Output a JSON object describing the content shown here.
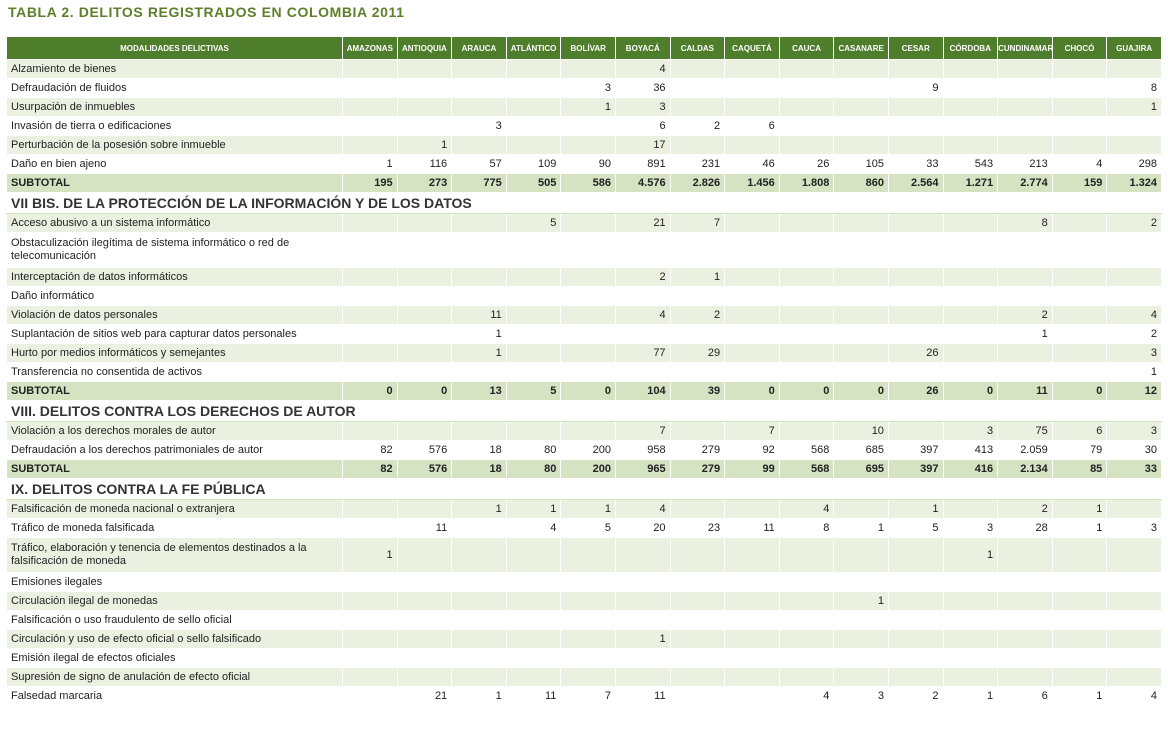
{
  "title": "TABLA 2. DELITOS REGISTRADOS EN COLOMBIA 2011",
  "columns": [
    "MODALIDADES DELICTIVAS",
    "AMAZONAS",
    "ANTIOQUIA",
    "ARAUCA",
    "ATLÁNTICO",
    "BOLÍVAR",
    "BOYACÁ",
    "CALDAS",
    "CAQUETÁ",
    "CAUCA",
    "CASANARE",
    "CESAR",
    "CÓRDOBA",
    "CUNDINAMARCA",
    "CHOCÓ",
    "GUAJIRA"
  ],
  "rows": [
    {
      "type": "data",
      "name": "Alzamiento de bienes",
      "values": [
        "",
        "",
        "",
        "",
        "",
        "4",
        "",
        "",
        "",
        "",
        "",
        "",
        "",
        "",
        ""
      ]
    },
    {
      "type": "data",
      "name": "Defraudación de fluidos",
      "values": [
        "",
        "",
        "",
        "",
        "3",
        "36",
        "",
        "",
        "",
        "",
        "9",
        "",
        "",
        "",
        "8"
      ]
    },
    {
      "type": "data",
      "name": "Usurpación de inmuebles",
      "values": [
        "",
        "",
        "",
        "",
        "1",
        "3",
        "",
        "",
        "",
        "",
        "",
        "",
        "",
        "",
        "1"
      ]
    },
    {
      "type": "data",
      "name": "Invasión de tierra o edificaciones",
      "values": [
        "",
        "",
        "3",
        "",
        "",
        "6",
        "2",
        "6",
        "",
        "",
        "",
        "",
        "",
        "",
        ""
      ]
    },
    {
      "type": "data",
      "name": "Perturbación de la posesión sobre inmueble",
      "values": [
        "",
        "1",
        "",
        "",
        "",
        "17",
        "",
        "",
        "",
        "",
        "",
        "",
        "",
        "",
        ""
      ]
    },
    {
      "type": "data",
      "name": "Daño en bien ajeno",
      "values": [
        "1",
        "116",
        "57",
        "109",
        "90",
        "891",
        "231",
        "46",
        "26",
        "105",
        "33",
        "543",
        "213",
        "4",
        "298"
      ]
    },
    {
      "type": "subtotal",
      "name": "SUBTOTAL",
      "values": [
        "195",
        "273",
        "775",
        "505",
        "586",
        "4.576",
        "2.826",
        "1.456",
        "1.808",
        "860",
        "2.564",
        "1.271",
        "2.774",
        "159",
        "1.324"
      ]
    },
    {
      "type": "section",
      "name": "VII BIS. DE LA PROTECCIÓN DE LA INFORMACIÓN Y DE LOS DATOS"
    },
    {
      "type": "data",
      "name": "Acceso abusivo a un sistema informático",
      "values": [
        "",
        "",
        "",
        "5",
        "",
        "21",
        "7",
        "",
        "",
        "",
        "",
        "",
        "8",
        "",
        "2"
      ]
    },
    {
      "type": "data",
      "tall": true,
      "name": "Obstaculización ilegítima de sistema informático o red de telecomunicación",
      "values": [
        "",
        "",
        "",
        "",
        "",
        "",
        "",
        "",
        "",
        "",
        "",
        "",
        "",
        "",
        ""
      ]
    },
    {
      "type": "data",
      "name": "Interceptación de datos informáticos",
      "values": [
        "",
        "",
        "",
        "",
        "",
        "2",
        "1",
        "",
        "",
        "",
        "",
        "",
        "",
        "",
        ""
      ]
    },
    {
      "type": "data",
      "name": "Daño informático",
      "values": [
        "",
        "",
        "",
        "",
        "",
        "",
        "",
        "",
        "",
        "",
        "",
        "",
        "",
        "",
        ""
      ]
    },
    {
      "type": "data",
      "name": "Violación de datos personales",
      "values": [
        "",
        "",
        "11",
        "",
        "",
        "4",
        "2",
        "",
        "",
        "",
        "",
        "",
        "2",
        "",
        "4"
      ]
    },
    {
      "type": "data",
      "name": "Suplantación de sitios web para capturar datos personales",
      "values": [
        "",
        "",
        "1",
        "",
        "",
        "",
        "",
        "",
        "",
        "",
        "",
        "",
        "1",
        "",
        "2"
      ]
    },
    {
      "type": "data",
      "name": "Hurto por medios informáticos y semejantes",
      "values": [
        "",
        "",
        "1",
        "",
        "",
        "77",
        "29",
        "",
        "",
        "",
        "26",
        "",
        "",
        "",
        "3"
      ]
    },
    {
      "type": "data",
      "name": "Transferencia no consentida de activos",
      "values": [
        "",
        "",
        "",
        "",
        "",
        "",
        "",
        "",
        "",
        "",
        "",
        "",
        "",
        "",
        "1"
      ]
    },
    {
      "type": "subtotal",
      "name": "SUBTOTAL",
      "values": [
        "0",
        "0",
        "13",
        "5",
        "0",
        "104",
        "39",
        "0",
        "0",
        "0",
        "26",
        "0",
        "11",
        "0",
        "12"
      ]
    },
    {
      "type": "section",
      "name": "VIII. DELITOS CONTRA LOS DERECHOS DE AUTOR"
    },
    {
      "type": "data",
      "name": "Violación a los derechos morales de autor",
      "values": [
        "",
        "",
        "",
        "",
        "",
        "7",
        "",
        "7",
        "",
        "10",
        "",
        "3",
        "75",
        "6",
        "3"
      ]
    },
    {
      "type": "data",
      "name": "Defraudación a los derechos patrimoniales de autor",
      "values": [
        "82",
        "576",
        "18",
        "80",
        "200",
        "958",
        "279",
        "92",
        "568",
        "685",
        "397",
        "413",
        "2.059",
        "79",
        "30"
      ]
    },
    {
      "type": "subtotal",
      "name": "SUBTOTAL",
      "values": [
        "82",
        "576",
        "18",
        "80",
        "200",
        "965",
        "279",
        "99",
        "568",
        "695",
        "397",
        "416",
        "2.134",
        "85",
        "33"
      ]
    },
    {
      "type": "section",
      "name": "IX. DELITOS CONTRA LA FE PÚBLICA"
    },
    {
      "type": "data",
      "name": "Falsificación de moneda nacional o extranjera",
      "values": [
        "",
        "",
        "1",
        "1",
        "1",
        "4",
        "",
        "",
        "4",
        "",
        "1",
        "",
        "2",
        "1",
        ""
      ]
    },
    {
      "type": "data",
      "name": "Tráfico de moneda falsificada",
      "values": [
        "",
        "11",
        "",
        "4",
        "5",
        "20",
        "23",
        "11",
        "8",
        "1",
        "5",
        "3",
        "28",
        "1",
        "3"
      ]
    },
    {
      "type": "data",
      "tall": true,
      "name": "Tráfico, elaboración y tenencia de elementos destinados a la falsificación de moneda",
      "values": [
        "1",
        "",
        "",
        "",
        "",
        "",
        "",
        "",
        "",
        "",
        "",
        "1",
        "",
        "",
        ""
      ]
    },
    {
      "type": "data",
      "name": "Emisiones ilegales",
      "values": [
        "",
        "",
        "",
        "",
        "",
        "",
        "",
        "",
        "",
        "",
        "",
        "",
        "",
        "",
        ""
      ]
    },
    {
      "type": "data",
      "name": "Circulación ilegal de monedas",
      "values": [
        "",
        "",
        "",
        "",
        "",
        "",
        "",
        "",
        "",
        "1",
        "",
        "",
        "",
        "",
        ""
      ]
    },
    {
      "type": "data",
      "name": "Falsificación o uso fraudulento de sello oficial",
      "values": [
        "",
        "",
        "",
        "",
        "",
        "",
        "",
        "",
        "",
        "",
        "",
        "",
        "",
        "",
        ""
      ]
    },
    {
      "type": "data",
      "name": "Circulación y uso de efecto oficial o sello falsificado",
      "values": [
        "",
        "",
        "",
        "",
        "",
        "1",
        "",
        "",
        "",
        "",
        "",
        "",
        "",
        "",
        ""
      ]
    },
    {
      "type": "data",
      "name": "Emisión ilegal de efectos oficiales",
      "values": [
        "",
        "",
        "",
        "",
        "",
        "",
        "",
        "",
        "",
        "",
        "",
        "",
        "",
        "",
        ""
      ]
    },
    {
      "type": "data",
      "name": "Supresión de signo de anulación de efecto oficial",
      "values": [
        "",
        "",
        "",
        "",
        "",
        "",
        "",
        "",
        "",
        "",
        "",
        "",
        "",
        "",
        ""
      ]
    },
    {
      "type": "data",
      "name": "Falsedad marcaria",
      "values": [
        "",
        "21",
        "1",
        "11",
        "7",
        "11",
        "",
        "",
        "4",
        "3",
        "2",
        "1",
        "6",
        "1",
        "4"
      ]
    }
  ]
}
